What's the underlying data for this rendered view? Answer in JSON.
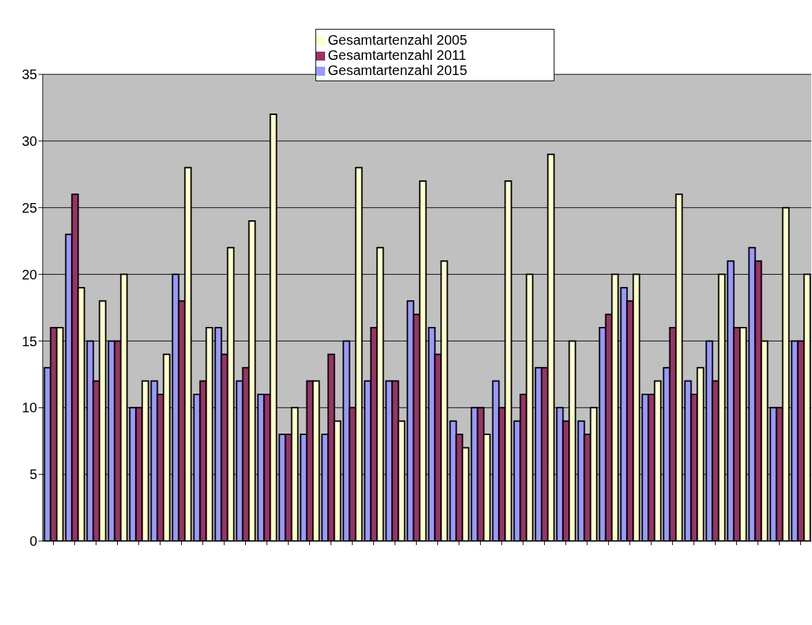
{
  "chart_data": {
    "type": "bar",
    "categories": [
      null,
      null,
      null,
      null,
      null,
      null,
      null,
      null,
      null,
      null,
      null,
      null,
      null,
      null,
      null,
      null,
      null,
      null,
      null,
      null,
      null,
      null,
      null,
      null,
      null,
      null,
      null,
      null,
      null,
      null,
      null,
      null,
      null,
      null,
      null,
      null
    ],
    "series": [
      {
        "name": "Gesamtartenzahl 2015",
        "color": "#9999ff",
        "values": [
          13,
          23,
          15,
          15,
          10,
          12,
          20,
          11,
          16,
          12,
          11,
          8,
          8,
          8,
          15,
          12,
          12,
          18,
          16,
          9,
          10,
          12,
          9,
          13,
          10,
          9,
          16,
          19,
          11,
          13,
          12,
          15,
          21,
          22,
          10,
          15
        ]
      },
      {
        "name": "Gesamtartenzahl 2011",
        "color": "#993366",
        "values": [
          16,
          26,
          12,
          15,
          10,
          11,
          18,
          12,
          14,
          13,
          11,
          8,
          12,
          14,
          10,
          16,
          12,
          17,
          14,
          8,
          10,
          10,
          11,
          13,
          9,
          8,
          17,
          18,
          11,
          16,
          11,
          12,
          16,
          21,
          10,
          15
        ]
      },
      {
        "name": "Gesamtartenzahl 2005",
        "color": "#ffffcc",
        "values": [
          16,
          19,
          18,
          20,
          12,
          14,
          28,
          16,
          22,
          24,
          32,
          10,
          12,
          9,
          28,
          22,
          9,
          27,
          21,
          7,
          8,
          27,
          20,
          29,
          15,
          10,
          20,
          20,
          12,
          26,
          13,
          20,
          16,
          15,
          25,
          20
        ]
      }
    ],
    "ylim": [
      0,
      35
    ],
    "yticks": [
      0,
      5,
      10,
      15,
      20,
      25,
      30,
      35
    ],
    "grid": "y",
    "legend": "top"
  }
}
